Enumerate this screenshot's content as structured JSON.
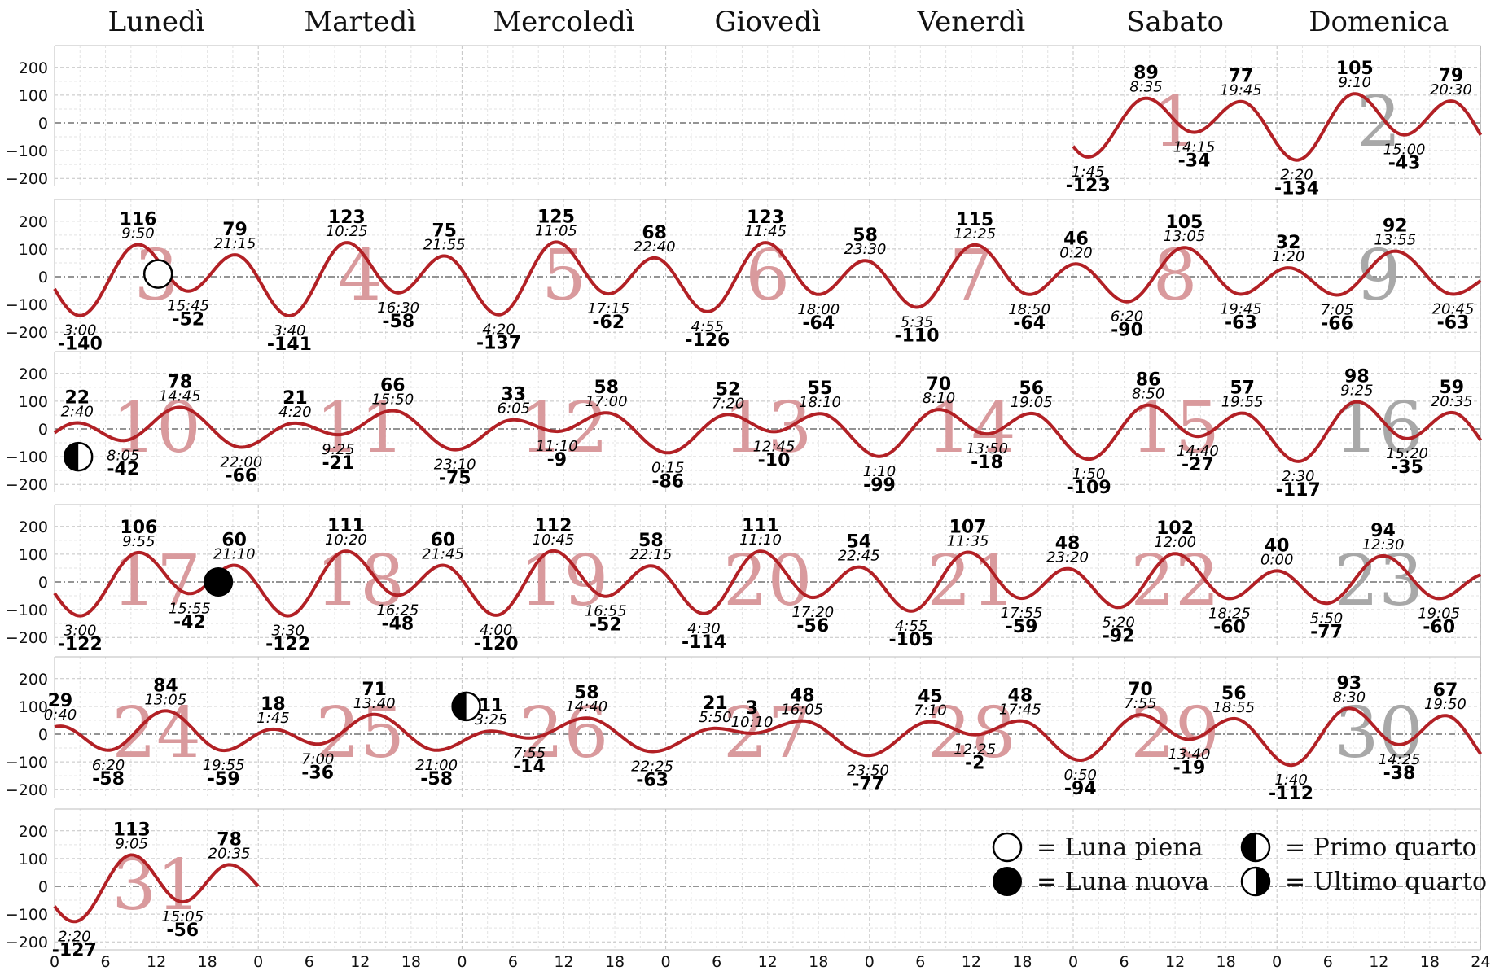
{
  "chart_data": {
    "type": "line",
    "title": "",
    "weekday_headers": [
      "Lunedì",
      "Martedì",
      "Mercoledì",
      "Giovedì",
      "Venerdì",
      "Sabato",
      "Domenica"
    ],
    "x_tick_labels": [
      "0",
      "6",
      "12",
      "18",
      "0",
      "6",
      "12",
      "18",
      "0",
      "6",
      "12",
      "18",
      "0",
      "6",
      "12",
      "18",
      "0",
      "6",
      "12",
      "18",
      "0",
      "6",
      "12",
      "18",
      "0",
      "6",
      "12",
      "18",
      "24"
    ],
    "y_tick_labels": [
      "200",
      "100",
      "0",
      "−100",
      "−200"
    ],
    "ylim": [
      -240,
      240
    ],
    "grid": true,
    "curve_color": "#b22025",
    "day_number_color_weekday": "#d99a9d",
    "day_number_color_sunday": "#a8a8a8",
    "first_day_column": 5,
    "days": [
      {
        "day": "1",
        "extremes": [
          {
            "time": "1:45",
            "value": "-123"
          },
          {
            "time": "8:35",
            "value": "89"
          },
          {
            "time": "14:15",
            "value": "-34"
          },
          {
            "time": "19:45",
            "value": "77"
          }
        ]
      },
      {
        "day": "2",
        "extremes": [
          {
            "time": "2:20",
            "value": "-134"
          },
          {
            "time": "9:10",
            "value": "105"
          },
          {
            "time": "15:00",
            "value": "-43"
          },
          {
            "time": "20:30",
            "value": "79"
          }
        ]
      },
      {
        "day": "3",
        "extremes": [
          {
            "time": "3:00",
            "value": "-140"
          },
          {
            "time": "9:50",
            "value": "116"
          },
          {
            "time": "15:45",
            "value": "-52"
          },
          {
            "time": "21:15",
            "value": "79"
          }
        ]
      },
      {
        "day": "4",
        "extremes": [
          {
            "time": "3:40",
            "value": "-141"
          },
          {
            "time": "10:25",
            "value": "123"
          },
          {
            "time": "16:30",
            "value": "-58"
          },
          {
            "time": "21:55",
            "value": "75"
          }
        ]
      },
      {
        "day": "5",
        "extremes": [
          {
            "time": "4:20",
            "value": "-137"
          },
          {
            "time": "11:05",
            "value": "125"
          },
          {
            "time": "17:15",
            "value": "-62"
          },
          {
            "time": "22:40",
            "value": "68"
          }
        ]
      },
      {
        "day": "6",
        "extremes": [
          {
            "time": "4:55",
            "value": "-126"
          },
          {
            "time": "11:45",
            "value": "123"
          },
          {
            "time": "18:00",
            "value": "-64"
          },
          {
            "time": "23:30",
            "value": "58"
          }
        ]
      },
      {
        "day": "7",
        "extremes": [
          {
            "time": "5:35",
            "value": "-110"
          },
          {
            "time": "12:25",
            "value": "115"
          },
          {
            "time": "18:50",
            "value": "-64"
          }
        ]
      },
      {
        "day": "8",
        "extremes": [
          {
            "time": "0:20",
            "value": "46"
          },
          {
            "time": "6:20",
            "value": "-90"
          },
          {
            "time": "13:05",
            "value": "105"
          },
          {
            "time": "19:45",
            "value": "-63"
          }
        ]
      },
      {
        "day": "9",
        "extremes": [
          {
            "time": "1:20",
            "value": "32"
          },
          {
            "time": "7:05",
            "value": "-66"
          },
          {
            "time": "13:55",
            "value": "92"
          },
          {
            "time": "20:45",
            "value": "-63"
          }
        ]
      },
      {
        "day": "10",
        "extremes": [
          {
            "time": "2:40",
            "value": "22"
          },
          {
            "time": "8:05",
            "value": "-42"
          },
          {
            "time": "14:45",
            "value": "78"
          },
          {
            "time": "22:00",
            "value": "-66"
          }
        ]
      },
      {
        "day": "11",
        "extremes": [
          {
            "time": "4:20",
            "value": "21"
          },
          {
            "time": "9:25",
            "value": "-21"
          },
          {
            "time": "15:50",
            "value": "66"
          },
          {
            "time": "23:10",
            "value": "-75"
          }
        ]
      },
      {
        "day": "12",
        "extremes": [
          {
            "time": "6:05",
            "value": "33"
          },
          {
            "time": "11:10",
            "value": "-9"
          },
          {
            "time": "17:00",
            "value": "58"
          }
        ]
      },
      {
        "day": "13",
        "extremes": [
          {
            "time": "0:15",
            "value": "-86"
          },
          {
            "time": "7:20",
            "value": "52"
          },
          {
            "time": "12:45",
            "value": "-10"
          },
          {
            "time": "18:10",
            "value": "55"
          }
        ]
      },
      {
        "day": "14",
        "extremes": [
          {
            "time": "1:10",
            "value": "-99"
          },
          {
            "time": "8:10",
            "value": "70"
          },
          {
            "time": "13:50",
            "value": "-18"
          },
          {
            "time": "19:05",
            "value": "56"
          }
        ]
      },
      {
        "day": "15",
        "extremes": [
          {
            "time": "1:50",
            "value": "-109"
          },
          {
            "time": "8:50",
            "value": "86"
          },
          {
            "time": "14:40",
            "value": "-27"
          },
          {
            "time": "19:55",
            "value": "57"
          }
        ]
      },
      {
        "day": "16",
        "extremes": [
          {
            "time": "2:30",
            "value": "-117"
          },
          {
            "time": "9:25",
            "value": "98"
          },
          {
            "time": "15:20",
            "value": "-35"
          },
          {
            "time": "20:35",
            "value": "59"
          }
        ]
      },
      {
        "day": "17",
        "extremes": [
          {
            "time": "3:00",
            "value": "-122"
          },
          {
            "time": "9:55",
            "value": "106"
          },
          {
            "time": "15:55",
            "value": "-42"
          },
          {
            "time": "21:10",
            "value": "60"
          }
        ]
      },
      {
        "day": "18",
        "extremes": [
          {
            "time": "3:30",
            "value": "-122"
          },
          {
            "time": "10:20",
            "value": "111"
          },
          {
            "time": "16:25",
            "value": "-48"
          },
          {
            "time": "21:45",
            "value": "60"
          }
        ]
      },
      {
        "day": "19",
        "extremes": [
          {
            "time": "4:00",
            "value": "-120"
          },
          {
            "time": "10:45",
            "value": "112"
          },
          {
            "time": "16:55",
            "value": "-52"
          },
          {
            "time": "22:15",
            "value": "58"
          }
        ]
      },
      {
        "day": "20",
        "extremes": [
          {
            "time": "4:30",
            "value": "-114"
          },
          {
            "time": "11:10",
            "value": "111"
          },
          {
            "time": "17:20",
            "value": "-56"
          },
          {
            "time": "22:45",
            "value": "54"
          }
        ]
      },
      {
        "day": "21",
        "extremes": [
          {
            "time": "4:55",
            "value": "-105"
          },
          {
            "time": "11:35",
            "value": "107"
          },
          {
            "time": "17:55",
            "value": "-59"
          },
          {
            "time": "23:20",
            "value": "48"
          }
        ]
      },
      {
        "day": "22",
        "extremes": [
          {
            "time": "5:20",
            "value": "-92"
          },
          {
            "time": "12:00",
            "value": "102"
          },
          {
            "time": "18:25",
            "value": "-60"
          }
        ]
      },
      {
        "day": "23",
        "extremes": [
          {
            "time": "0:00",
            "value": "40"
          },
          {
            "time": "5:50",
            "value": "-77"
          },
          {
            "time": "12:30",
            "value": "94"
          },
          {
            "time": "19:05",
            "value": "-60"
          }
        ]
      },
      {
        "day": "24",
        "extremes": [
          {
            "time": "0:40",
            "value": "29"
          },
          {
            "time": "6:20",
            "value": "-58"
          },
          {
            "time": "13:05",
            "value": "84"
          },
          {
            "time": "19:55",
            "value": "-59"
          }
        ]
      },
      {
        "day": "25",
        "extremes": [
          {
            "time": "1:45",
            "value": "18"
          },
          {
            "time": "7:00",
            "value": "-36"
          },
          {
            "time": "13:40",
            "value": "71"
          },
          {
            "time": "21:00",
            "value": "-58"
          }
        ]
      },
      {
        "day": "26",
        "extremes": [
          {
            "time": "3:25",
            "value": "11"
          },
          {
            "time": "7:55",
            "value": "-14"
          },
          {
            "time": "14:40",
            "value": "58"
          },
          {
            "time": "22:25",
            "value": "-63"
          }
        ]
      },
      {
        "day": "27",
        "extremes": [
          {
            "time": "5:50",
            "value": "21"
          },
          {
            "time": "10:10",
            "value": "3"
          },
          {
            "time": "16:05",
            "value": "48"
          },
          {
            "time": "23:50",
            "value": "-77"
          }
        ]
      },
      {
        "day": "28",
        "extremes": [
          {
            "time": "7:10",
            "value": "45"
          },
          {
            "time": "12:25",
            "value": "-2"
          },
          {
            "time": "17:45",
            "value": "48"
          }
        ]
      },
      {
        "day": "29",
        "extremes": [
          {
            "time": "0:50",
            "value": "-94"
          },
          {
            "time": "7:55",
            "value": "70"
          },
          {
            "time": "13:40",
            "value": "-19"
          },
          {
            "time": "18:55",
            "value": "56"
          }
        ]
      },
      {
        "day": "30",
        "extremes": [
          {
            "time": "1:40",
            "value": "-112"
          },
          {
            "time": "8:30",
            "value": "93"
          },
          {
            "time": "14:25",
            "value": "-38"
          },
          {
            "time": "19:50",
            "value": "67"
          }
        ]
      },
      {
        "day": "31",
        "extremes": [
          {
            "time": "2:20",
            "value": "-127"
          },
          {
            "time": "9:05",
            "value": "113"
          },
          {
            "time": "15:05",
            "value": "-56"
          },
          {
            "time": "20:35",
            "value": "78"
          }
        ]
      }
    ],
    "moon_phases": [
      {
        "phase": "full",
        "day": "3",
        "time_h": 12.2,
        "value": 10
      },
      {
        "phase": "first_quarter",
        "day": "10",
        "time_h": 2.8,
        "value": -100
      },
      {
        "phase": "new",
        "day": "17",
        "time_h": 19.3,
        "value": 0
      },
      {
        "phase": "first_quarter",
        "day": "26",
        "time_h": 0.5,
        "value": 100
      }
    ],
    "legend": [
      {
        "symbol": "full",
        "label": "= Luna piena"
      },
      {
        "symbol": "first_quarter",
        "label": "= Primo quarto"
      },
      {
        "symbol": "new",
        "label": "= Luna nuova"
      },
      {
        "symbol": "last_quarter",
        "label": "= Ultimo quarto"
      }
    ],
    "legend_placement": "bottom-right"
  }
}
